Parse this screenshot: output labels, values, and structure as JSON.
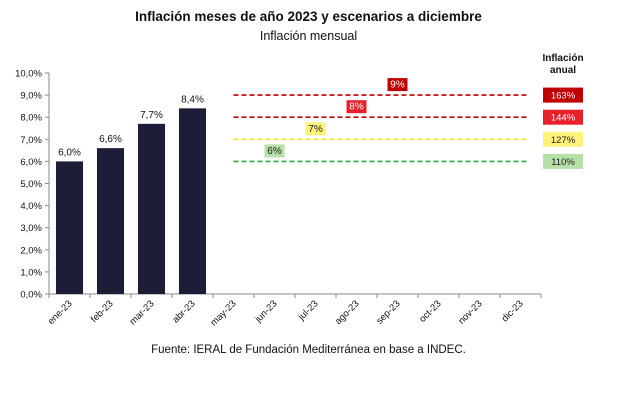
{
  "title": "Inflación meses de año 2023 y escenarios a diciembre",
  "subtitle": "Inflación mensual",
  "source": "Fuente: IERAL de Fundación Mediterránea en base a INDEC.",
  "chart_data": {
    "type": "bar",
    "categories": [
      "ene-23",
      "feb-23",
      "mar-23",
      "abr-23",
      "may-23",
      "jun-23",
      "jul-23",
      "ago-23",
      "sep-23",
      "oct-23",
      "nov-23",
      "dic-23"
    ],
    "series": [
      {
        "values": [
          6.0,
          6.6,
          7.7,
          8.4,
          null,
          null,
          null,
          null,
          null,
          null,
          null,
          null
        ],
        "labels": [
          "6,0%",
          "6,6%",
          "7,7%",
          "8,4%"
        ],
        "color": "#1b1e36"
      }
    ],
    "yticks": [
      "0,0%",
      "1,0%",
      "2,0%",
      "3,0%",
      "4,0%",
      "5,0%",
      "6,0%",
      "7,0%",
      "8,0%",
      "9,0%",
      "10,0%"
    ],
    "ylim": [
      0,
      10
    ],
    "scenarios": [
      {
        "monthly": 9,
        "label": "9%",
        "annual": "163%",
        "line_color": "#c00000",
        "badge_bg": "#c00000",
        "badge_text": "#ffffff",
        "label_month": "sep-23"
      },
      {
        "monthly": 8,
        "label": "8%",
        "annual": "144%",
        "line_color": "#c00000",
        "badge_bg": "#e8202a",
        "badge_text": "#ffffff",
        "label_month": "ago-23"
      },
      {
        "monthly": 7,
        "label": "7%",
        "annual": "127%",
        "line_color": "#e8e020",
        "badge_bg": "#fff27a",
        "badge_text": "#222222",
        "label_month": "jul-23"
      },
      {
        "monthly": 6,
        "label": "6%",
        "annual": "110%",
        "line_color": "#3aa23a",
        "badge_bg": "#b6e0a6",
        "badge_text": "#222222",
        "label_month": "jun-23"
      }
    ],
    "scenario_start": "may-23",
    "scenario_end": "dic-23",
    "annual_header": [
      "Inflación",
      "anual"
    ],
    "grid": false
  }
}
